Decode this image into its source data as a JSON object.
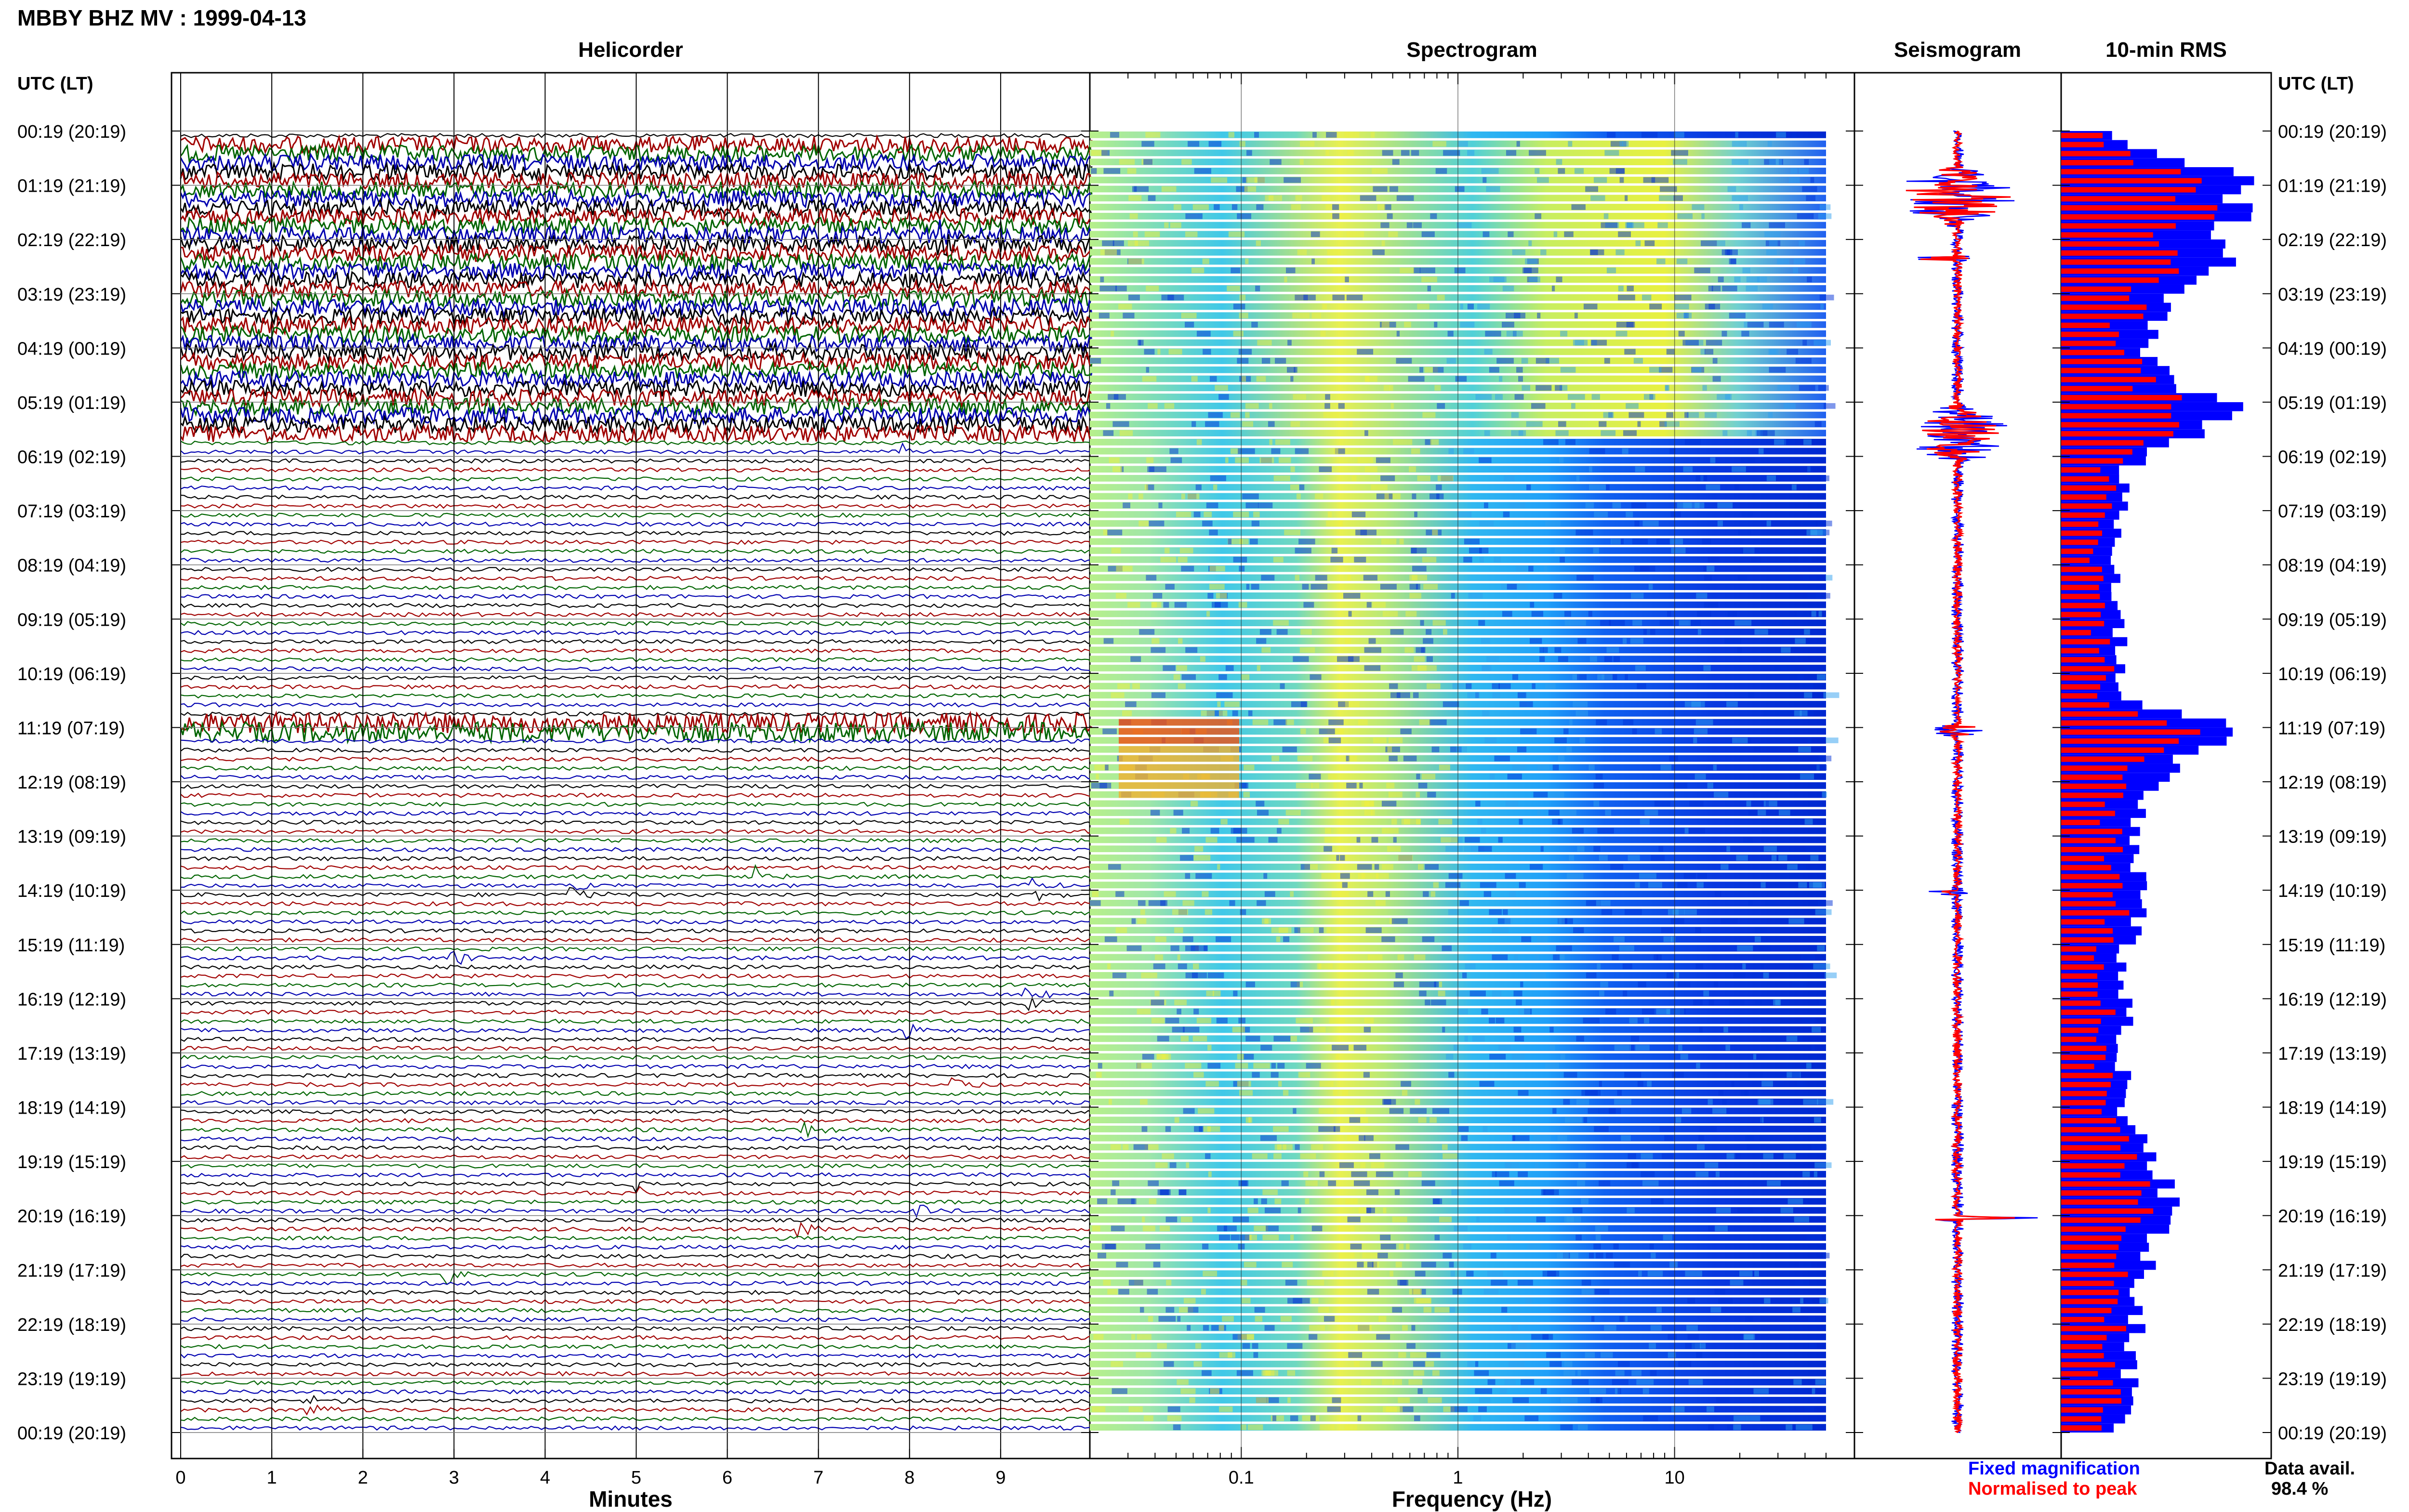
{
  "page": {
    "title": "MBBY BHZ MV : 1999-04-13"
  },
  "legend": {
    "fixed_label": "Fixed magnification",
    "normalised_label": "Normalised to peak",
    "availability_label": "Data avail.",
    "availability_value": "98.4 %"
  },
  "colors": {
    "trace_cycle": [
      "#000000",
      "#a00000",
      "#006400",
      "#0000b0"
    ],
    "fixed": "#0000ff",
    "normalised": "#ff0000"
  },
  "chart_data": [
    {
      "type": "line",
      "title": "Helicorder",
      "xlabel": "Minutes",
      "ylabel": "UTC (LT)",
      "x_ticks": [
        0,
        1,
        2,
        3,
        4,
        5,
        6,
        7,
        8,
        9
      ],
      "xlim": [
        0,
        10
      ],
      "y_tick_labels": [
        "00:19 (20:19)",
        "01:19 (21:19)",
        "02:19 (22:19)",
        "03:19 (23:19)",
        "04:19 (00:19)",
        "05:19 (01:19)",
        "06:19 (02:19)",
        "07:19 (03:19)",
        "08:19 (04:19)",
        "09:19 (05:19)",
        "10:19 (06:19)",
        "11:19 (07:19)",
        "12:19 (08:19)",
        "13:19 (09:19)",
        "14:19 (10:19)",
        "15:19 (11:19)",
        "16:19 (12:19)",
        "17:19 (13:19)",
        "18:19 (14:19)",
        "19:19 (15:19)",
        "20:19 (16:19)",
        "21:19 (17:19)",
        "22:19 (18:19)",
        "23:19 (19:19)",
        "00:19 (20:19)"
      ],
      "rows": 144,
      "minutes_per_row": 10,
      "grid": true,
      "noisy_hours": [
        [
          0.25,
          5.7
        ],
        [
          10.8,
          11.1
        ]
      ],
      "events_minute_hour": [
        [
          8.3,
          2.0
        ],
        [
          7.9,
          5.9
        ],
        [
          4.3,
          14.0
        ],
        [
          8.0,
          16.6
        ],
        [
          8.1,
          19.9
        ],
        [
          2.9,
          21.1
        ],
        [
          1.4,
          23.5
        ],
        [
          6.8,
          20.3
        ],
        [
          5.0,
          19.5
        ],
        [
          9.3,
          16.0
        ],
        [
          9.3,
          14.0
        ],
        [
          6.3,
          13.8
        ],
        [
          8.5,
          17.6
        ],
        [
          3.0,
          15.3
        ],
        [
          6.8,
          18.4
        ]
      ]
    },
    {
      "type": "heatmap",
      "title": "Spectrogram",
      "xlabel": "Frequency (Hz)",
      "x_scale": "log",
      "xlim": [
        0.02,
        50
      ],
      "x_tick_labels": [
        {
          "value": 0.1,
          "label": "0.1"
        },
        {
          "value": 1,
          "label": "1"
        },
        {
          "value": 10,
          "label": "10"
        }
      ],
      "colormap": "jet",
      "ylim_hours": [
        0,
        24
      ]
    },
    {
      "type": "line",
      "title": "Seismogram",
      "series": [
        {
          "name": "Fixed magnification",
          "color": "#0000ff"
        },
        {
          "name": "Normalised to peak",
          "color": "#ff0000"
        }
      ],
      "bursts_hours": [
        [
          0.6,
          1.8,
          1.0
        ],
        [
          5.0,
          6.2,
          0.8
        ],
        [
          10.9,
          11.2,
          0.4
        ],
        [
          2.3,
          2.4,
          0.9
        ],
        [
          20.0,
          20.1,
          1.4
        ],
        [
          14.0,
          14.1,
          0.6
        ]
      ]
    },
    {
      "type": "bar",
      "title": "10-min RMS",
      "orientation": "horizontal",
      "bins": 144,
      "series": [
        {
          "name": "Fixed magnification",
          "color": "#0000ff"
        },
        {
          "name": "Normalised to peak",
          "color": "#ff0000"
        }
      ],
      "profile_hours_value": [
        [
          0.0,
          0.22
        ],
        [
          0.5,
          0.45
        ],
        [
          0.8,
          0.95
        ],
        [
          1.2,
          0.9
        ],
        [
          1.8,
          0.75
        ],
        [
          2.3,
          0.8
        ],
        [
          2.8,
          0.6
        ],
        [
          3.5,
          0.45
        ],
        [
          4.1,
          0.35
        ],
        [
          4.6,
          0.55
        ],
        [
          5.2,
          0.85
        ],
        [
          5.8,
          0.55
        ],
        [
          6.2,
          0.3
        ],
        [
          7.0,
          0.28
        ],
        [
          9.0,
          0.27
        ],
        [
          10.5,
          0.3
        ],
        [
          11.0,
          0.95
        ],
        [
          11.6,
          0.55
        ],
        [
          12.4,
          0.4
        ],
        [
          13.5,
          0.32
        ],
        [
          14.0,
          0.45
        ],
        [
          15.0,
          0.3
        ],
        [
          18.0,
          0.3
        ],
        [
          20.0,
          0.55
        ],
        [
          21.0,
          0.38
        ],
        [
          22.5,
          0.35
        ],
        [
          23.6,
          0.3
        ],
        [
          24.0,
          0.25
        ]
      ]
    }
  ]
}
